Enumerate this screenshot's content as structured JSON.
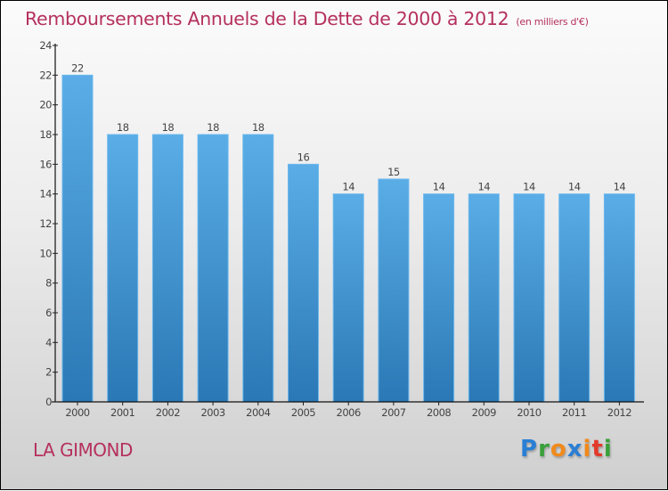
{
  "title": "Remboursements Annuels de la Dette de 2000 à 2012",
  "unit_note": "(en milliers d'€)",
  "commune": "LA GIMOND",
  "logo": {
    "letters": [
      {
        "ch": "P",
        "color": "#2a7fd4"
      },
      {
        "ch": "r",
        "color": "#3aa03a"
      },
      {
        "ch": "o",
        "color": "#f08a1c"
      },
      {
        "ch": "x",
        "color": "#2a7fd4"
      },
      {
        "ch": "i",
        "color": "#f08a1c"
      },
      {
        "ch": "t",
        "color": "#e23a2a"
      },
      {
        "ch": "i",
        "color": "#3aa03a"
      }
    ]
  },
  "colors": {
    "bar_top": "#5aade6",
    "bar_bottom": "#2a78b5",
    "title": "#b5305e"
  },
  "chart_data": {
    "type": "bar",
    "title": "Remboursements Annuels de la Dette de 2000 à 2012",
    "subtitle": "(en milliers d'€)",
    "xlabel": "",
    "ylabel": "",
    "categories": [
      "2000",
      "2001",
      "2002",
      "2003",
      "2004",
      "2005",
      "2006",
      "2007",
      "2008",
      "2009",
      "2010",
      "2011",
      "2012"
    ],
    "values": [
      22,
      18,
      18,
      18,
      18,
      16,
      14,
      15,
      14,
      14,
      14,
      14,
      14
    ],
    "ylim": [
      0,
      24
    ],
    "yticks": [
      0,
      2,
      4,
      6,
      8,
      10,
      12,
      14,
      16,
      18,
      20,
      22,
      24
    ],
    "grid": false,
    "legend": "none"
  }
}
